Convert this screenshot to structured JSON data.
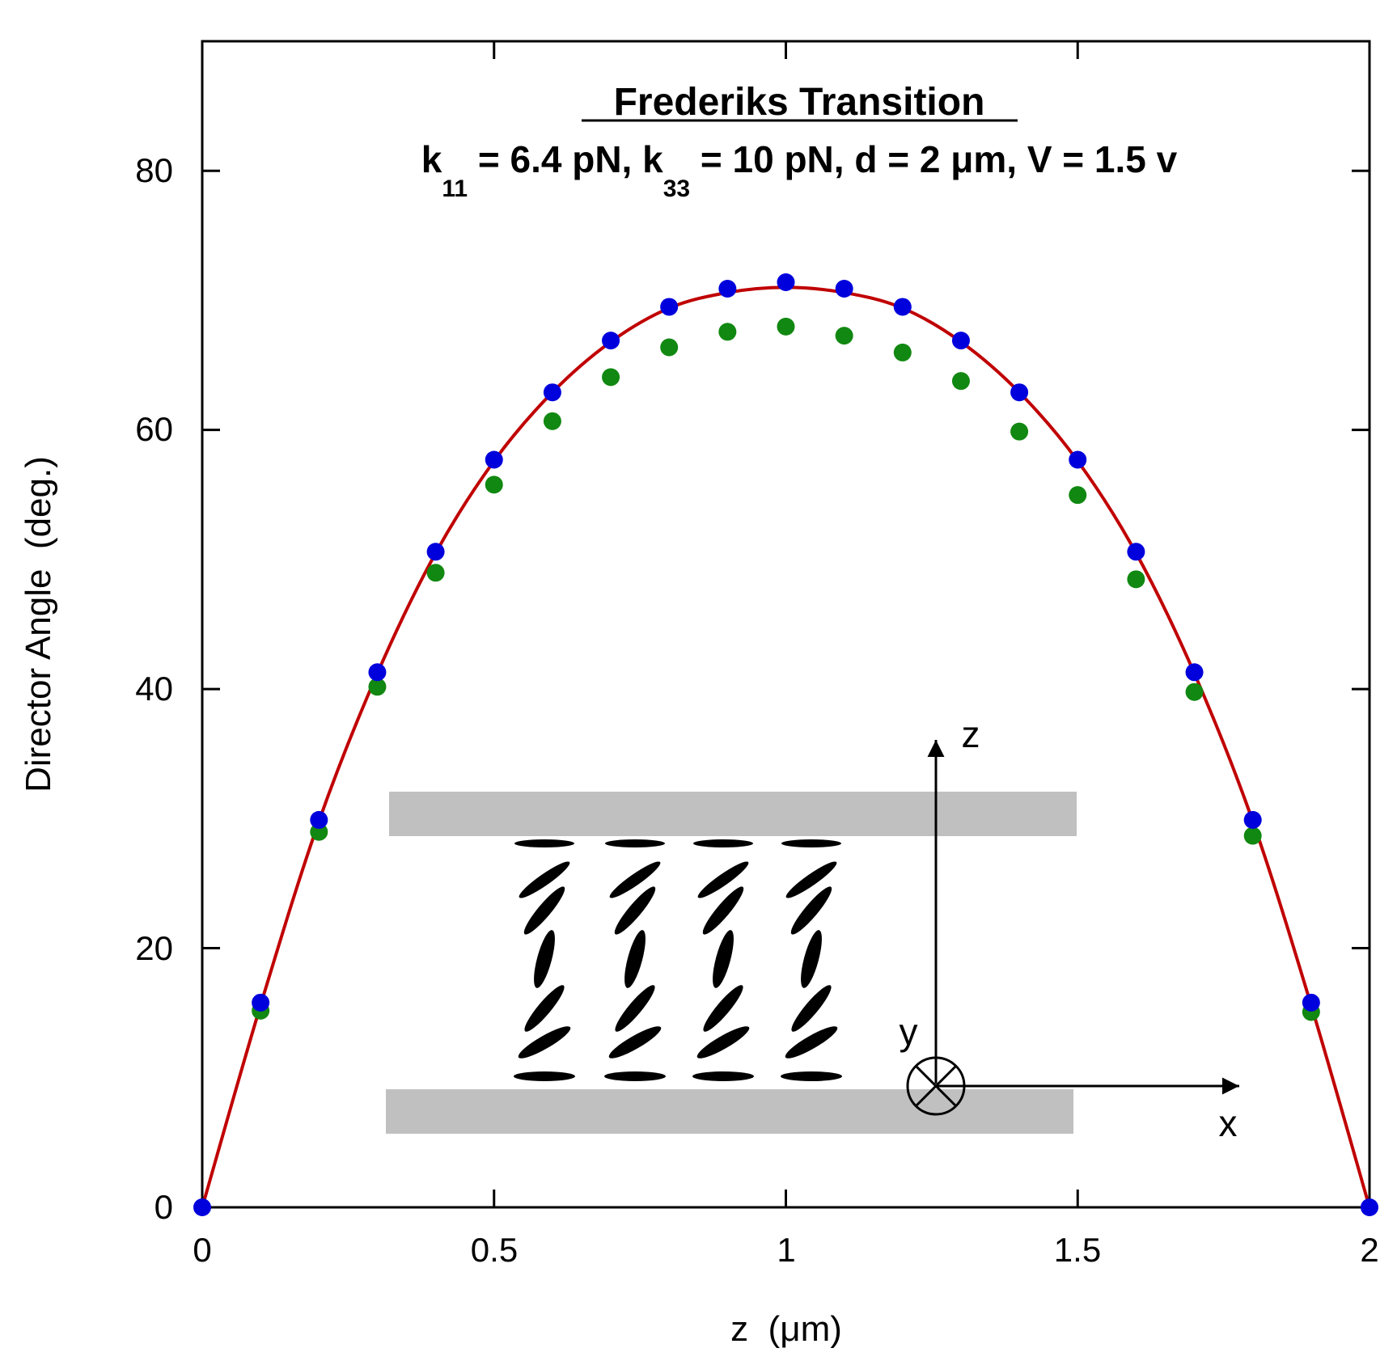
{
  "chart_data": {
    "type": "scatter",
    "title": "Frederiks Transition",
    "subtitle": {
      "k_symbol_1": "k",
      "k_sub_1": "11",
      "k_value_1": " = 6.4 pN, ",
      "k_symbol_2": "k",
      "k_sub_2": "33",
      "k_value_2": " = 10 pN, d = 2 μm, V = 1.5 v"
    },
    "xlabel": "z  (μm)",
    "ylabel": "Director Angle  (deg.)",
    "xlim": [
      0,
      2
    ],
    "ylim": [
      0,
      90
    ],
    "xticks": [
      0,
      0.5,
      1,
      1.5,
      2
    ],
    "xtick_labels": [
      "0",
      "0.5",
      "1",
      "1.5",
      "2"
    ],
    "yticks": [
      0,
      20,
      40,
      60,
      80
    ],
    "ytick_labels": [
      "0",
      "20",
      "40",
      "60",
      "80"
    ],
    "grid": false,
    "series": [
      {
        "name": "fit curve",
        "style": "line",
        "color": "#c00000",
        "x": [
          0,
          0.1,
          0.2,
          0.3,
          0.4,
          0.5,
          0.6,
          0.7,
          0.8,
          0.9,
          1.0,
          1.1,
          1.2,
          1.3,
          1.4,
          1.5,
          1.6,
          1.7,
          1.8,
          1.9,
          2.0
        ],
        "values": [
          0,
          15.6,
          29.8,
          41.2,
          50.5,
          57.6,
          62.9,
          66.8,
          69.4,
          70.6,
          71.0,
          70.6,
          69.4,
          66.8,
          62.9,
          57.6,
          50.5,
          41.2,
          29.8,
          15.6,
          0
        ]
      },
      {
        "name": "blue points",
        "style": "markers",
        "color": "#0000dd",
        "x": [
          0,
          0.1,
          0.2,
          0.3,
          0.4,
          0.5,
          0.6,
          0.7,
          0.8,
          0.9,
          1.0,
          1.1,
          1.2,
          1.3,
          1.4,
          1.5,
          1.6,
          1.7,
          1.8,
          1.9,
          2.0
        ],
        "values": [
          0,
          15.8,
          29.9,
          41.3,
          50.6,
          57.7,
          62.9,
          66.9,
          69.5,
          70.9,
          71.4,
          70.9,
          69.5,
          66.9,
          62.9,
          57.7,
          50.6,
          41.3,
          29.9,
          15.8,
          0
        ]
      },
      {
        "name": "green points",
        "style": "markers",
        "color": "#118811",
        "x": [
          0.1,
          0.2,
          0.3,
          0.4,
          0.5,
          0.6,
          0.7,
          0.8,
          0.9,
          1.0,
          1.1,
          1.2,
          1.3,
          1.4,
          1.5,
          1.6,
          1.7,
          1.8,
          1.9
        ],
        "values": [
          15.3,
          29.1,
          40.3,
          49.1,
          55.9,
          60.8,
          64.2,
          66.5,
          67.7,
          68.1,
          67.4,
          66.1,
          63.9,
          60.0,
          55.1,
          48.6,
          39.9,
          28.8,
          15.2
        ]
      }
    ],
    "inset": {
      "axis_z_label": "z",
      "axis_y_label": "y",
      "axis_x_label": "x"
    }
  }
}
